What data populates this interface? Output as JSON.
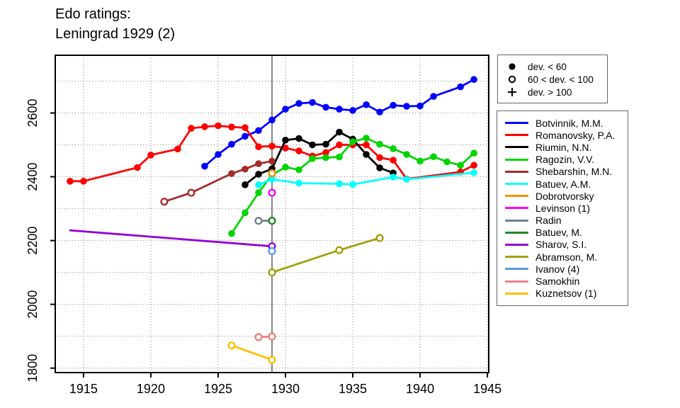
{
  "title": {
    "line1": "Edo ratings:",
    "line2": "Leningrad 1929 (2)"
  },
  "marker_legend": {
    "items": [
      {
        "marker": "filled",
        "label": "dev. < 60"
      },
      {
        "marker": "open",
        "label": "60 < dev. < 100"
      },
      {
        "marker": "plus",
        "label": "dev. > 100"
      }
    ]
  },
  "chart_data": {
    "type": "line",
    "title": "Edo ratings: Leningrad 1929 (2)",
    "xlabel": "",
    "ylabel": "",
    "grid": true,
    "legend_position": "right",
    "x_domain": [
      1912.9,
      1945.1
    ],
    "y_domain": [
      1786,
      2781
    ],
    "x_ticks": [
      1915,
      1920,
      1925,
      1930,
      1935,
      1940,
      1945
    ],
    "y_ticks": [
      1800,
      2000,
      2200,
      2400,
      2600
    ],
    "x_gridlines": [
      1915,
      1920,
      1925,
      1930,
      1935,
      1940,
      1945
    ],
    "y_gridlines": [
      1800,
      1900,
      2000,
      2100,
      2200,
      2300,
      2400,
      2500,
      2600,
      2700
    ],
    "event_line_x": 1929,
    "event_line_color": "#8c8c8c",
    "marker_meaning": {
      "f": "dev. < 60",
      "o": "60 < dev. < 100",
      "p": "dev. > 100",
      "n": "no marker"
    },
    "series": [
      {
        "name": "Botvinnik, M.M.",
        "color": "#0000ff",
        "points": [
          [
            1924,
            2433,
            "f"
          ],
          [
            1925,
            2470,
            "f"
          ],
          [
            1926,
            2502,
            "f"
          ],
          [
            1927,
            2527,
            "f"
          ],
          [
            1928,
            2545,
            "f"
          ],
          [
            1929,
            2578,
            "f"
          ],
          [
            1930,
            2612,
            "f"
          ],
          [
            1931,
            2630,
            "f"
          ],
          [
            1932,
            2633,
            "f"
          ],
          [
            1933,
            2618,
            "f"
          ],
          [
            1934,
            2612,
            "f"
          ],
          [
            1935,
            2608,
            "f"
          ],
          [
            1936,
            2626,
            "f"
          ],
          [
            1937,
            2603,
            "f"
          ],
          [
            1938,
            2624,
            "f"
          ],
          [
            1939,
            2621,
            "f"
          ],
          [
            1940,
            2622,
            "f"
          ],
          [
            1941,
            2652,
            "f"
          ],
          [
            1943,
            2682,
            "f"
          ],
          [
            1944,
            2705,
            "f"
          ]
        ]
      },
      {
        "name": "Romanovsky, P.A.",
        "color": "#ff0000",
        "points": [
          [
            1914,
            2386,
            "f"
          ],
          [
            1915,
            2386,
            "f"
          ],
          [
            1919,
            2429,
            "f"
          ],
          [
            1920,
            2468,
            "f"
          ],
          [
            1922,
            2487,
            "f"
          ],
          [
            1923,
            2552,
            "f"
          ],
          [
            1924,
            2557,
            "f"
          ],
          [
            1925,
            2560,
            "f"
          ],
          [
            1926,
            2556,
            "f"
          ],
          [
            1927,
            2554,
            "f"
          ],
          [
            1928,
            2494,
            "f"
          ],
          [
            1929,
            2496,
            "f"
          ],
          [
            1930,
            2490,
            "f"
          ],
          [
            1931,
            2481,
            "f"
          ],
          [
            1932,
            2465,
            "f"
          ],
          [
            1933,
            2476,
            "f"
          ],
          [
            1934,
            2500,
            "f"
          ],
          [
            1935,
            2500,
            "f"
          ],
          [
            1936,
            2500,
            "f"
          ],
          [
            1937,
            2460,
            "f"
          ],
          [
            1938,
            2452,
            "f"
          ],
          [
            1939,
            2393,
            "f"
          ],
          [
            1943,
            2415,
            "f"
          ],
          [
            1944,
            2436,
            "f"
          ]
        ]
      },
      {
        "name": "Riumin, N.N.",
        "color": "#000000",
        "points": [
          [
            1927,
            2375,
            "f"
          ],
          [
            1928,
            2408,
            "f"
          ],
          [
            1929,
            2425,
            "f"
          ],
          [
            1930,
            2515,
            "f"
          ],
          [
            1931,
            2520,
            "f"
          ],
          [
            1932,
            2500,
            "f"
          ],
          [
            1933,
            2502,
            "f"
          ],
          [
            1934,
            2540,
            "f"
          ],
          [
            1935,
            2518,
            "f"
          ],
          [
            1936,
            2470,
            "f"
          ],
          [
            1937,
            2428,
            "f"
          ],
          [
            1938,
            2412,
            "f"
          ]
        ]
      },
      {
        "name": "Ragozin, V.V.",
        "color": "#00d400",
        "points": [
          [
            1926,
            2222,
            "f"
          ],
          [
            1927,
            2287,
            "f"
          ],
          [
            1928,
            2350,
            "f"
          ],
          [
            1929,
            2406,
            "f"
          ],
          [
            1930,
            2430,
            "f"
          ],
          [
            1931,
            2422,
            "f"
          ],
          [
            1932,
            2457,
            "f"
          ],
          [
            1933,
            2460,
            "f"
          ],
          [
            1934,
            2462,
            "f"
          ],
          [
            1935,
            2510,
            "f"
          ],
          [
            1936,
            2521,
            "f"
          ],
          [
            1937,
            2502,
            "f"
          ],
          [
            1938,
            2488,
            "f"
          ],
          [
            1939,
            2470,
            "f"
          ],
          [
            1940,
            2449,
            "f"
          ],
          [
            1941,
            2463,
            "f"
          ],
          [
            1942,
            2447,
            "f"
          ],
          [
            1943,
            2436,
            "f"
          ],
          [
            1944,
            2474,
            "f"
          ]
        ]
      },
      {
        "name": "Shebarshin, M.N.",
        "color": "#a52a2a",
        "points": [
          [
            1921,
            2322,
            "o"
          ],
          [
            1923,
            2350,
            "o"
          ],
          [
            1926,
            2410,
            "f"
          ],
          [
            1927,
            2424,
            "f"
          ],
          [
            1928,
            2441,
            "f"
          ],
          [
            1929,
            2449,
            "f"
          ]
        ]
      },
      {
        "name": "Batuev, A.M.",
        "color": "#00ffff",
        "points": [
          [
            1928,
            2375,
            "f"
          ],
          [
            1929,
            2392,
            "f"
          ],
          [
            1931,
            2380,
            "f"
          ],
          [
            1934,
            2378,
            "f"
          ],
          [
            1935,
            2376,
            "f"
          ],
          [
            1938,
            2399,
            "f"
          ],
          [
            1939,
            2392,
            "f"
          ],
          [
            1944,
            2413,
            "f"
          ]
        ]
      },
      {
        "name": "Dobrotvorsky",
        "color": "#ff8c00",
        "points": [
          [
            1929,
            2411,
            "o"
          ]
        ]
      },
      {
        "name": "Levinson (1)",
        "color": "#ff00ff",
        "points": [
          [
            1929,
            2350,
            "o"
          ]
        ]
      },
      {
        "name": "Radin",
        "color": "#708090",
        "points": [
          [
            1928,
            2262,
            "o"
          ],
          [
            1929,
            2262,
            "o"
          ]
        ]
      },
      {
        "name": "Batuev, M.",
        "color": "#228b22",
        "points": [
          [
            1929,
            2262,
            "o"
          ]
        ]
      },
      {
        "name": "Sharov, S.I.",
        "color": "#9400d3",
        "points": [
          [
            1914,
            2232,
            "n"
          ],
          [
            1929,
            2182,
            "o"
          ]
        ]
      },
      {
        "name": "Abramson, M.",
        "color": "#a0a010",
        "points": [
          [
            1929,
            2100,
            "o"
          ],
          [
            1934,
            2170,
            "o"
          ],
          [
            1937,
            2208,
            "o"
          ]
        ]
      },
      {
        "name": "Ivanov (4)",
        "color": "#5599ee",
        "points": [
          [
            1929,
            2167,
            "o"
          ]
        ]
      },
      {
        "name": "Samokhin",
        "color": "#f08080",
        "points": [
          [
            1928,
            1897,
            "o"
          ],
          [
            1929,
            1899,
            "o"
          ]
        ]
      },
      {
        "name": "Kuznetsov (1)",
        "color": "#ffc000",
        "points": [
          [
            1926,
            1871,
            "o"
          ],
          [
            1929,
            1826,
            "o"
          ]
        ]
      }
    ]
  }
}
